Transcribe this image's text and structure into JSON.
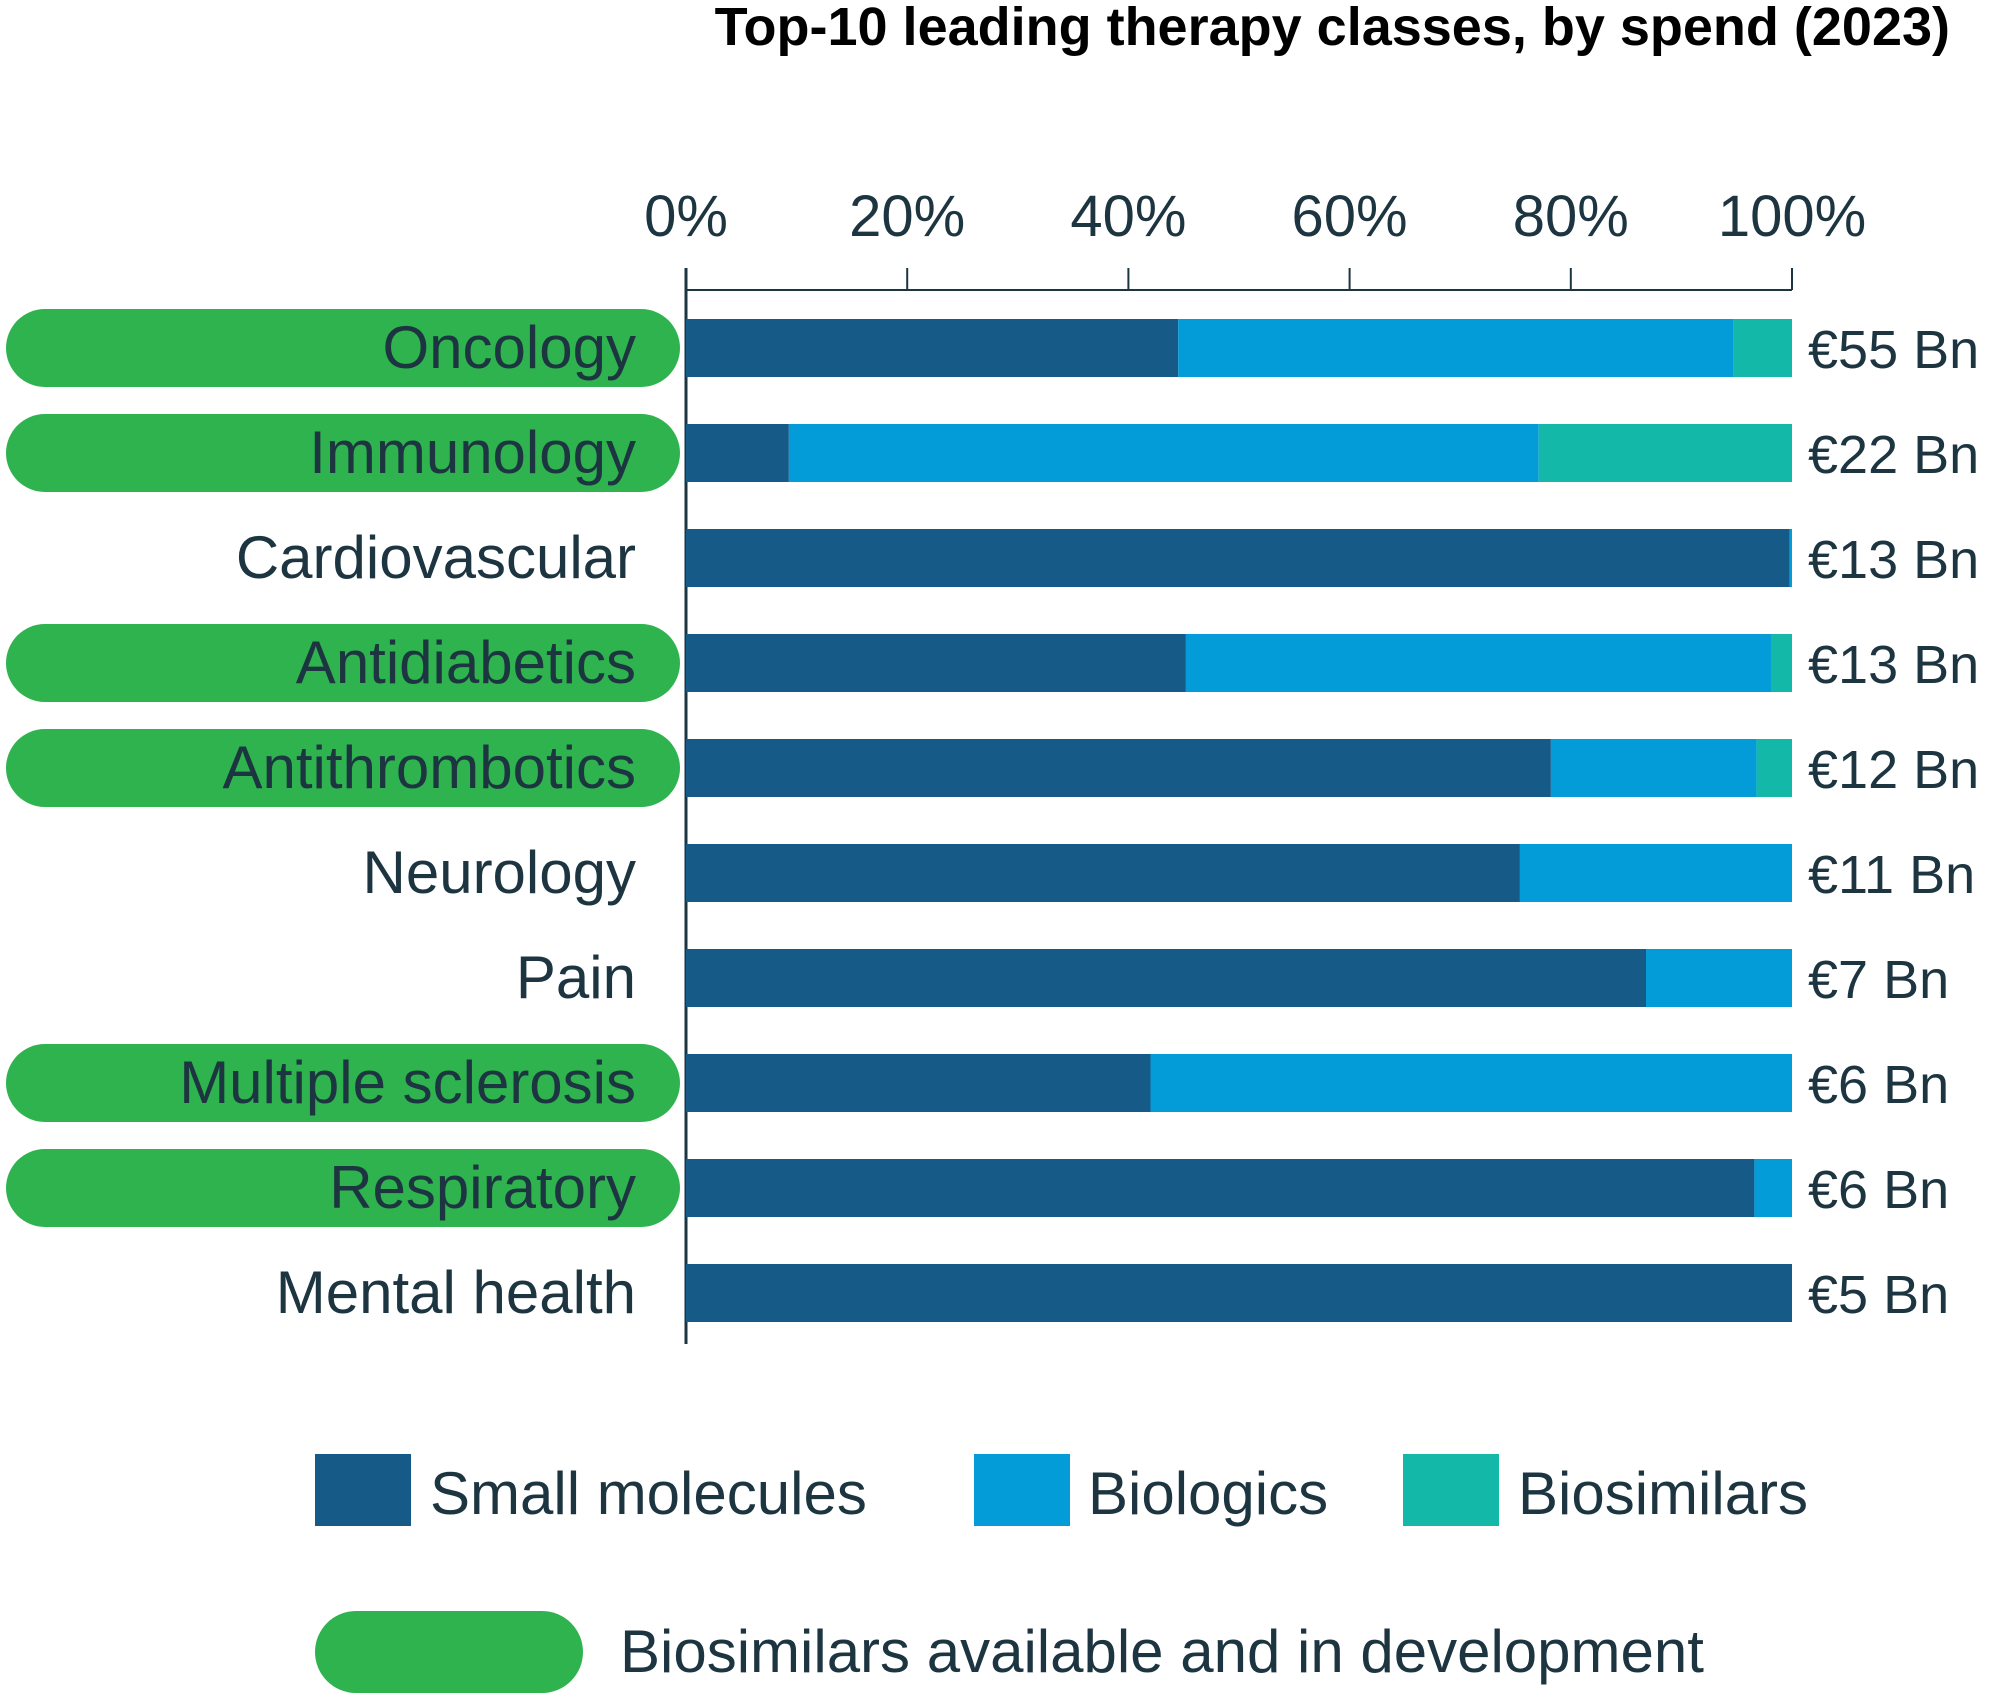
{
  "colors": {
    "small_molecules": "#165a87",
    "biologics": "#049cd8",
    "biosimilars": "#14b8a8",
    "highlight": "#2eb34e",
    "text": "#1d3540",
    "axis": "#1d3540"
  },
  "chart_data": {
    "type": "bar",
    "orientation": "horizontal",
    "stacked": true,
    "title": "Top-10 leading therapy classes, by spend (2023)",
    "x_ticks": [
      "0%",
      "20%",
      "40%",
      "60%",
      "80%",
      "100%"
    ],
    "xlim": [
      0,
      100
    ],
    "grid": false,
    "legend_position": "bottom",
    "categories": [
      "Oncology",
      "Immunology",
      "Cardiovascular",
      "Antidiabetics",
      "Antithrombotics",
      "Neurology",
      "Pain",
      "Multiple sclerosis",
      "Respiratory",
      "Mental health"
    ],
    "highlighted": [
      true,
      true,
      false,
      true,
      true,
      false,
      false,
      true,
      true,
      false
    ],
    "spend_labels": [
      "€55 Bn",
      "€22 Bn",
      "€13 Bn",
      "€13 Bn",
      "€12 Bn",
      "€11 Bn",
      "€7 Bn",
      "€6 Bn",
      "€6 Bn",
      "€5 Bn"
    ],
    "series": [
      {
        "name": "Small molecules",
        "color_key": "small_molecules",
        "values": [
          44.5,
          9.3,
          99.8,
          45.2,
          78.2,
          75.4,
          86.8,
          42.0,
          96.6,
          100.0
        ]
      },
      {
        "name": "Biologics",
        "color_key": "biologics",
        "values": [
          50.2,
          67.8,
          0.2,
          52.9,
          18.6,
          24.6,
          13.2,
          58.0,
          3.4,
          0.0
        ]
      },
      {
        "name": "Biosimilars",
        "color_key": "biosimilars",
        "values": [
          5.3,
          22.9,
          0.0,
          1.9,
          3.2,
          0.0,
          0.0,
          0.0,
          0.0,
          0.0
        ]
      }
    ],
    "highlight_legend_label": "Biosimilars available and in development"
  }
}
